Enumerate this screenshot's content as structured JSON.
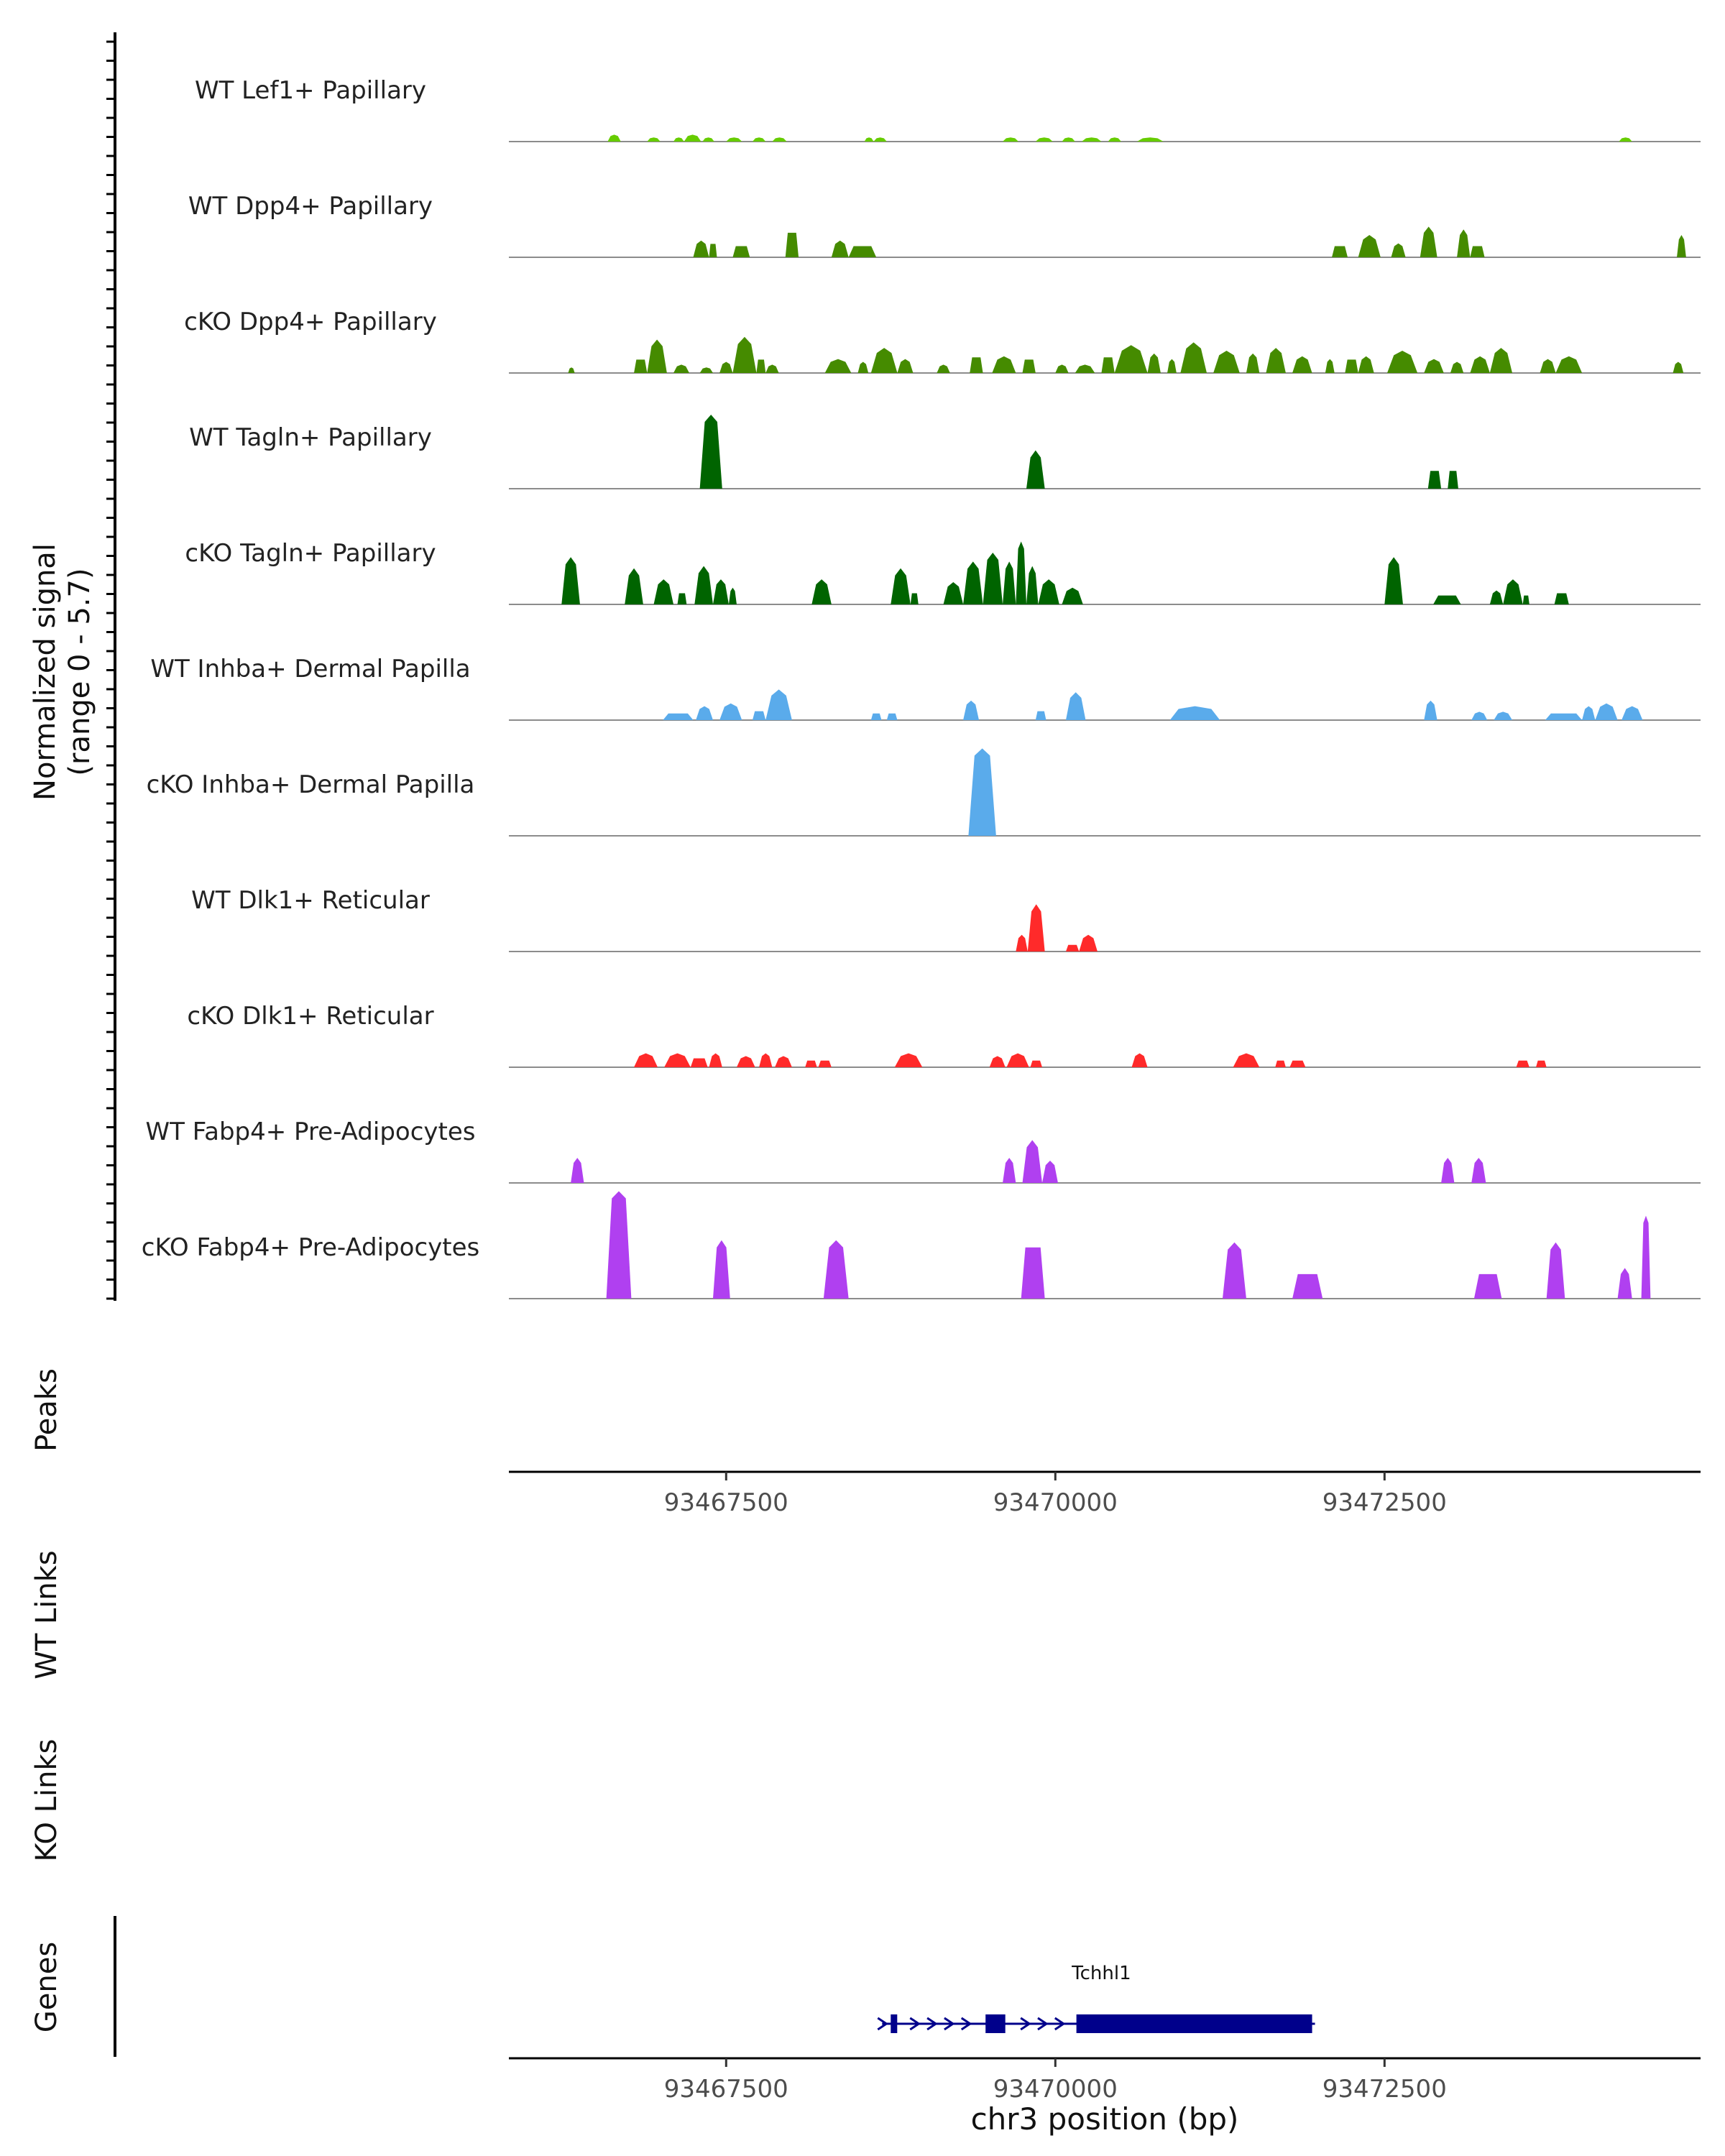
{
  "colors": {
    "lime": "#66cc00",
    "olive": "#458b00",
    "darkgreen": "#006400",
    "skyblue": "#5aabeb",
    "red": "#ff2a2a",
    "purple": "#b040f0",
    "navy": "#00008b",
    "baseline": "#8c8c8c",
    "axis": "#000000"
  },
  "chart_data": {
    "type": "area",
    "ylabel": "Normalized signal",
    "ylabel_range": "(range 0 - 5.7)",
    "ylim": [
      0,
      5.7
    ],
    "xlabel": "chr3 position (bp)",
    "xlim": [
      93465850,
      93474900
    ],
    "xticks": [
      93467500,
      93470000,
      93472500
    ],
    "xtick_labels": [
      "93467500",
      "93470000",
      "93472500"
    ],
    "panels": {
      "peaks": "Peaks",
      "wt_links": "WT Links",
      "ko_links": "KO Links",
      "genes": "Genes"
    },
    "series": [
      {
        "name": "WT Lef1+ Papillary",
        "color": "lime",
        "pieces": [
          [
            93466600,
            93466700,
            0.25,
            "p"
          ],
          [
            93466900,
            93467000,
            0.15,
            "p"
          ],
          [
            93467100,
            93467180,
            0.15,
            "p"
          ],
          [
            93467180,
            93467310,
            0.25,
            "p"
          ],
          [
            93467320,
            93467410,
            0.15,
            "p"
          ],
          [
            93467500,
            93467620,
            0.15,
            "p"
          ],
          [
            93467700,
            93467800,
            0.15,
            "p"
          ],
          [
            93467850,
            93467960,
            0.15,
            "p"
          ],
          [
            93468550,
            93468620,
            0.15,
            "p"
          ],
          [
            93468620,
            93468720,
            0.15,
            "p"
          ],
          [
            93469600,
            93469720,
            0.15,
            "p"
          ],
          [
            93469850,
            93469980,
            0.15,
            "p"
          ],
          [
            93470050,
            93470150,
            0.15,
            "p"
          ],
          [
            93470200,
            93470350,
            0.15,
            "p"
          ],
          [
            93470400,
            93470500,
            0.15,
            "p"
          ],
          [
            93470620,
            93470820,
            0.15,
            "p"
          ],
          [
            93474280,
            93474380,
            0.15,
            "p"
          ]
        ]
      },
      {
        "name": "WT Dpp4+ Papillary",
        "color": "olive",
        "pieces": [
          [
            93467250,
            93467370,
            0.6,
            "p"
          ],
          [
            93467370,
            93467430,
            0.6,
            "s"
          ],
          [
            93467550,
            93467680,
            0.5,
            "s"
          ],
          [
            93467950,
            93468050,
            1.1,
            "s"
          ],
          [
            93468300,
            93468430,
            0.6,
            "p"
          ],
          [
            93468430,
            93468640,
            0.5,
            "s"
          ],
          [
            93472100,
            93472220,
            0.5,
            "s"
          ],
          [
            93472300,
            93472470,
            0.8,
            "p"
          ],
          [
            93472550,
            93472660,
            0.5,
            "p"
          ],
          [
            93472770,
            93472900,
            1.1,
            "p"
          ],
          [
            93473050,
            93473150,
            1.0,
            "p"
          ],
          [
            93473150,
            93473260,
            0.5,
            "s"
          ],
          [
            93474720,
            93474790,
            0.8,
            "p"
          ]
        ]
      },
      {
        "name": "cKO Dpp4+ Papillary",
        "color": "olive",
        "pieces": [
          [
            93466300,
            93466350,
            0.2,
            "p"
          ],
          [
            93466800,
            93466900,
            0.6,
            "s"
          ],
          [
            93466900,
            93467050,
            1.2,
            "p"
          ],
          [
            93467100,
            93467220,
            0.3,
            "p"
          ],
          [
            93467300,
            93467400,
            0.2,
            "p"
          ],
          [
            93467450,
            93467550,
            0.4,
            "p"
          ],
          [
            93467550,
            93467730,
            1.3,
            "p"
          ],
          [
            93467730,
            93467800,
            0.6,
            "s"
          ],
          [
            93467800,
            93467900,
            0.3,
            "p"
          ],
          [
            93468250,
            93468450,
            0.5,
            "p"
          ],
          [
            93468500,
            93468580,
            0.4,
            "p"
          ],
          [
            93468600,
            93468800,
            0.9,
            "p"
          ],
          [
            93468800,
            93468920,
            0.5,
            "p"
          ],
          [
            93469100,
            93469200,
            0.3,
            "p"
          ],
          [
            93469350,
            93469450,
            0.7,
            "s"
          ],
          [
            93469520,
            93469700,
            0.6,
            "p"
          ],
          [
            93469750,
            93469850,
            0.6,
            "s"
          ],
          [
            93470000,
            93470100,
            0.3,
            "p"
          ],
          [
            93470150,
            93470300,
            0.3,
            "p"
          ],
          [
            93470350,
            93470450,
            0.7,
            "s"
          ],
          [
            93470450,
            93470700,
            1.0,
            "p"
          ],
          [
            93470700,
            93470800,
            0.7,
            "p"
          ],
          [
            93470850,
            93470920,
            0.5,
            "p"
          ],
          [
            93470950,
            93471150,
            1.1,
            "p"
          ],
          [
            93471200,
            93471400,
            0.8,
            "p"
          ],
          [
            93471450,
            93471550,
            0.7,
            "p"
          ],
          [
            93471600,
            93471750,
            0.9,
            "p"
          ],
          [
            93471800,
            93471950,
            0.6,
            "p"
          ],
          [
            93472050,
            93472120,
            0.5,
            "p"
          ],
          [
            93472200,
            93472300,
            0.6,
            "s"
          ],
          [
            93472300,
            93472420,
            0.6,
            "p"
          ],
          [
            93472520,
            93472750,
            0.8,
            "p"
          ],
          [
            93472800,
            93472950,
            0.5,
            "p"
          ],
          [
            93473000,
            93473100,
            0.4,
            "p"
          ],
          [
            93473150,
            93473300,
            0.6,
            "p"
          ],
          [
            93473300,
            93473470,
            0.9,
            "p"
          ],
          [
            93473680,
            93473800,
            0.5,
            "p"
          ],
          [
            93473800,
            93474000,
            0.6,
            "p"
          ],
          [
            93474690,
            93474770,
            0.4,
            "p"
          ]
        ]
      },
      {
        "name": "WT Tagln+ Papillary",
        "color": "darkgreen",
        "pieces": [
          [
            93467300,
            93467470,
            3.0,
            "p"
          ],
          [
            93469780,
            93469920,
            1.4,
            "p"
          ],
          [
            93472830,
            93472930,
            0.8,
            "s"
          ],
          [
            93472980,
            93473060,
            0.8,
            "s"
          ]
        ]
      },
      {
        "name": "cKO Tagln+ Papillary",
        "color": "darkgreen",
        "pieces": [
          [
            93466250,
            93466390,
            1.8,
            "p"
          ],
          [
            93466730,
            93466870,
            1.3,
            "p"
          ],
          [
            93466950,
            93467100,
            0.9,
            "p"
          ],
          [
            93467130,
            93467200,
            0.5,
            "s"
          ],
          [
            93467260,
            93467400,
            1.4,
            "p"
          ],
          [
            93467400,
            93467520,
            0.9,
            "p"
          ],
          [
            93467520,
            93467580,
            0.6,
            "p"
          ],
          [
            93468150,
            93468300,
            0.9,
            "p"
          ],
          [
            93468750,
            93468900,
            1.3,
            "p"
          ],
          [
            93468900,
            93468960,
            0.5,
            "s"
          ],
          [
            93469150,
            93469300,
            0.8,
            "p"
          ],
          [
            93469300,
            93469450,
            1.6,
            "p"
          ],
          [
            93469450,
            93469600,
            2.0,
            "p"
          ],
          [
            93469600,
            93469700,
            1.6,
            "p"
          ],
          [
            93469700,
            93469780,
            2.5,
            "p"
          ],
          [
            93469780,
            93469870,
            1.4,
            "p"
          ],
          [
            93469870,
            93470030,
            0.9,
            "p"
          ],
          [
            93470050,
            93470210,
            0.6,
            "p"
          ],
          [
            93472500,
            93472640,
            1.8,
            "p"
          ],
          [
            93472870,
            93473080,
            0.4,
            "s"
          ],
          [
            93473300,
            93473400,
            0.5,
            "p"
          ],
          [
            93473400,
            93473550,
            0.9,
            "p"
          ],
          [
            93473550,
            93473600,
            0.4,
            "s"
          ],
          [
            93473790,
            93473900,
            0.5,
            "s"
          ]
        ]
      },
      {
        "name": "WT Inhba+ Dermal Papilla",
        "color": "skyblue",
        "pieces": [
          [
            93467020,
            93467250,
            0.3,
            "s"
          ],
          [
            93467270,
            93467400,
            0.5,
            "p"
          ],
          [
            93467450,
            93467620,
            0.6,
            "p"
          ],
          [
            93467700,
            93467800,
            0.4,
            "s"
          ],
          [
            93467800,
            93468000,
            1.1,
            "p"
          ],
          [
            93468600,
            93468680,
            0.3,
            "s"
          ],
          [
            93468720,
            93468800,
            0.3,
            "s"
          ],
          [
            93469300,
            93469420,
            0.7,
            "p"
          ],
          [
            93469850,
            93469930,
            0.4,
            "s"
          ],
          [
            93470080,
            93470230,
            1.0,
            "p"
          ],
          [
            93470870,
            93471250,
            0.5,
            "p"
          ],
          [
            93472800,
            93472900,
            0.7,
            "p"
          ],
          [
            93473160,
            93473280,
            0.3,
            "p"
          ],
          [
            93473330,
            93473470,
            0.3,
            "p"
          ],
          [
            93473720,
            93474000,
            0.3,
            "s"
          ],
          [
            93474000,
            93474100,
            0.5,
            "p"
          ],
          [
            93474100,
            93474270,
            0.6,
            "p"
          ],
          [
            93474300,
            93474460,
            0.5,
            "p"
          ]
        ]
      },
      {
        "name": "cKO Inhba+ Dermal Papilla",
        "color": "skyblue",
        "pieces": [
          [
            93469340,
            93469550,
            3.6,
            "p"
          ]
        ]
      },
      {
        "name": "WT Dlk1+ Reticular",
        "color": "red",
        "pieces": [
          [
            93469700,
            93469790,
            0.6,
            "p"
          ],
          [
            93469790,
            93469920,
            1.8,
            "p"
          ],
          [
            93470080,
            93470180,
            0.3,
            "s"
          ],
          [
            93470180,
            93470320,
            0.6,
            "p"
          ]
        ]
      },
      {
        "name": "cKO Dlk1+ Reticular",
        "color": "red",
        "pieces": [
          [
            93466800,
            93466980,
            0.5,
            "p"
          ],
          [
            93467030,
            93467230,
            0.5,
            "p"
          ],
          [
            93467230,
            93467360,
            0.4,
            "s"
          ],
          [
            93467370,
            93467470,
            0.5,
            "p"
          ],
          [
            93467580,
            93467720,
            0.4,
            "p"
          ],
          [
            93467750,
            93467850,
            0.5,
            "p"
          ],
          [
            93467870,
            93468000,
            0.4,
            "p"
          ],
          [
            93468100,
            93468190,
            0.3,
            "s"
          ],
          [
            93468200,
            93468300,
            0.3,
            "s"
          ],
          [
            93468780,
            93468990,
            0.5,
            "p"
          ],
          [
            93469500,
            93469620,
            0.4,
            "p"
          ],
          [
            93469630,
            93469800,
            0.5,
            "p"
          ],
          [
            93469810,
            93469900,
            0.3,
            "s"
          ],
          [
            93470580,
            93470700,
            0.5,
            "p"
          ],
          [
            93471350,
            93471550,
            0.5,
            "p"
          ],
          [
            93471670,
            93471750,
            0.3,
            "s"
          ],
          [
            93471780,
            93471900,
            0.3,
            "s"
          ],
          [
            93473500,
            93473600,
            0.3,
            "s"
          ],
          [
            93473650,
            93473730,
            0.3,
            "s"
          ]
        ]
      },
      {
        "name": "WT Fabp4+ Pre-Adipocytes",
        "color": "purple",
        "pieces": [
          [
            93466320,
            93466420,
            0.9,
            "p"
          ],
          [
            93469600,
            93469700,
            0.9,
            "p"
          ],
          [
            93469750,
            93469900,
            1.6,
            "p"
          ],
          [
            93469900,
            93470020,
            0.8,
            "p"
          ],
          [
            93472930,
            93473030,
            0.9,
            "p"
          ],
          [
            93473160,
            93473270,
            0.9,
            "p"
          ]
        ]
      },
      {
        "name": "cKO Fabp4+ Pre-Adipocytes",
        "color": "purple",
        "pieces": [
          [
            93466590,
            93466780,
            4.5,
            "p"
          ],
          [
            93467400,
            93467530,
            2.3,
            "p"
          ],
          [
            93468240,
            93468430,
            2.3,
            "p"
          ],
          [
            93469740,
            93469920,
            2.3,
            "s"
          ],
          [
            93471270,
            93471450,
            2.2,
            "p"
          ],
          [
            93471800,
            93472030,
            1.1,
            "s"
          ],
          [
            93473180,
            93473390,
            1.1,
            "s"
          ],
          [
            93473730,
            93473870,
            2.2,
            "p"
          ],
          [
            93474270,
            93474380,
            1.1,
            "p"
          ],
          [
            93474450,
            93474520,
            3.4,
            "p"
          ]
        ]
      }
    ],
    "genes": [
      {
        "name": "Tchhl1",
        "start": 93468750,
        "end": 93471950,
        "strand": "+",
        "exons": [
          [
            93468750,
            93468790
          ],
          [
            93469470,
            93469620
          ],
          [
            93470160,
            93471950
          ]
        ],
        "arrows": [
          93468930,
          93469060,
          93469190,
          93469320,
          93469770,
          93469900,
          93470030
        ]
      }
    ]
  }
}
